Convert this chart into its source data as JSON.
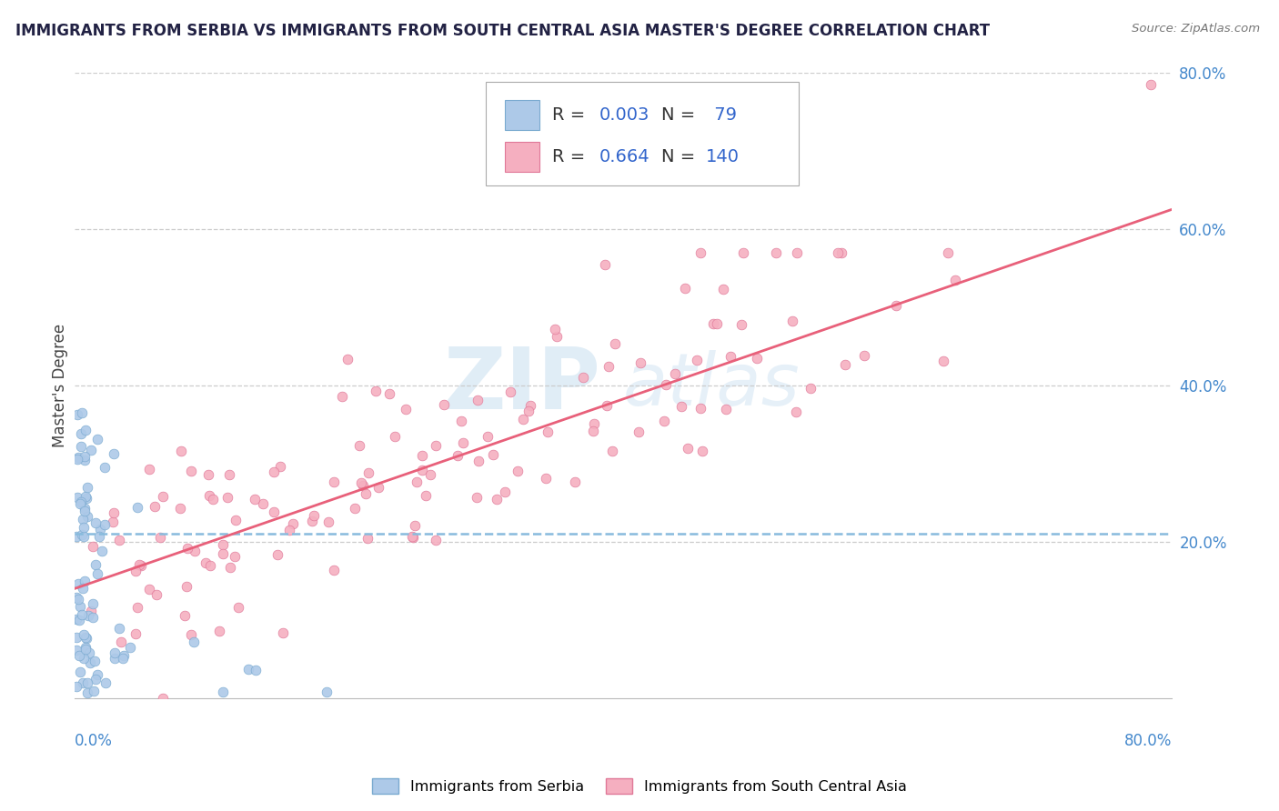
{
  "title": "IMMIGRANTS FROM SERBIA VS IMMIGRANTS FROM SOUTH CENTRAL ASIA MASTER'S DEGREE CORRELATION CHART",
  "source": "Source: ZipAtlas.com",
  "ylabel": "Master's Degree",
  "legend_serbia_label": "Immigrants from Serbia",
  "legend_sca_label": "Immigrants from South Central Asia",
  "serbia_R": 0.003,
  "serbia_N": 79,
  "sca_R": 0.664,
  "sca_N": 140,
  "serbia_color": "#adc9e8",
  "sca_color": "#f5afc0",
  "serbia_edge_color": "#7aaad0",
  "sca_edge_color": "#e07898",
  "serbia_trend_color": "#88bbdd",
  "sca_trend_color": "#e8607a",
  "xmin": 0.0,
  "xmax": 0.8,
  "ymin": 0.0,
  "ymax": 0.8,
  "right_yticks": [
    0.2,
    0.4,
    0.6,
    0.8
  ],
  "right_ytick_labels": [
    "20.0%",
    "40.0%",
    "60.0%",
    "80.0%"
  ],
  "grid_color": "#cccccc",
  "axis_label_color": "#4488cc",
  "legend_text_color": "#333333",
  "legend_value_color": "#3366cc",
  "serbia_trend_y": 0.21,
  "sca_trend_y_start": 0.14,
  "sca_trend_y_end": 0.625
}
